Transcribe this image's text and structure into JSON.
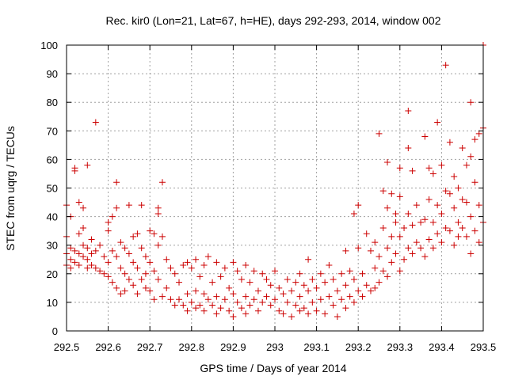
{
  "chart_data": {
    "type": "scatter",
    "title": "Rec. kir0 (Lon=21, Lat=67, h=HE), days 292-293, 2014, window 002",
    "xlabel": "GPS time / Days of year 2014",
    "ylabel": "STEC from uqrg / TECUs",
    "xlim": [
      292.5,
      293.5
    ],
    "ylim": [
      0,
      100
    ],
    "x_ticks": [
      292.5,
      292.6,
      292.7,
      292.8,
      292.9,
      293,
      293.1,
      293.2,
      293.3,
      293.4,
      293.5
    ],
    "x_tick_labels": [
      "292.5",
      "292.6",
      "292.7",
      "292.8",
      "292.9",
      "293",
      "293.1",
      "293.2",
      "293.3",
      "293.4",
      "293.5"
    ],
    "y_ticks": [
      0,
      10,
      20,
      30,
      40,
      50,
      60,
      70,
      80,
      90,
      100
    ],
    "y_tick_labels": [
      "0",
      "10",
      "20",
      "30",
      "40",
      "50",
      "60",
      "70",
      "80",
      "90",
      "100"
    ],
    "grid": true,
    "marker": "plus",
    "color": "#cc0000",
    "series": [
      {
        "points": [
          [
            292.5,
            44
          ],
          [
            292.5,
            33
          ],
          [
            292.5,
            27
          ],
          [
            292.5,
            23
          ],
          [
            292.51,
            40
          ],
          [
            292.51,
            29
          ],
          [
            292.51,
            25
          ],
          [
            292.51,
            22
          ],
          [
            292.52,
            57
          ],
          [
            292.52,
            56
          ],
          [
            292.52,
            28
          ],
          [
            292.52,
            24
          ],
          [
            292.53,
            45
          ],
          [
            292.53,
            34
          ],
          [
            292.53,
            27
          ],
          [
            292.53,
            23
          ],
          [
            292.54,
            43
          ],
          [
            292.54,
            36
          ],
          [
            292.54,
            30
          ],
          [
            292.54,
            26
          ],
          [
            292.55,
            58
          ],
          [
            292.55,
            29
          ],
          [
            292.55,
            25
          ],
          [
            292.55,
            22
          ],
          [
            292.56,
            32
          ],
          [
            292.56,
            27
          ],
          [
            292.56,
            23
          ],
          [
            292.57,
            73
          ],
          [
            292.57,
            28
          ],
          [
            292.57,
            22
          ],
          [
            292.58,
            30
          ],
          [
            292.58,
            21
          ],
          [
            292.59,
            26
          ],
          [
            292.59,
            20
          ],
          [
            292.6,
            38
          ],
          [
            292.6,
            35
          ],
          [
            292.6,
            24
          ],
          [
            292.6,
            19
          ],
          [
            292.61,
            40
          ],
          [
            292.61,
            28
          ],
          [
            292.61,
            17
          ],
          [
            292.62,
            52
          ],
          [
            292.62,
            43
          ],
          [
            292.62,
            26
          ],
          [
            292.62,
            15
          ],
          [
            292.63,
            31
          ],
          [
            292.63,
            22
          ],
          [
            292.63,
            13
          ],
          [
            292.64,
            29
          ],
          [
            292.64,
            20
          ],
          [
            292.64,
            14
          ],
          [
            292.65,
            44
          ],
          [
            292.65,
            27
          ],
          [
            292.65,
            18
          ],
          [
            292.66,
            33
          ],
          [
            292.66,
            24
          ],
          [
            292.66,
            16
          ],
          [
            292.67,
            34
          ],
          [
            292.67,
            22
          ],
          [
            292.67,
            13
          ],
          [
            292.68,
            44
          ],
          [
            292.68,
            29
          ],
          [
            292.68,
            18
          ],
          [
            292.69,
            26
          ],
          [
            292.69,
            20
          ],
          [
            292.69,
            15
          ],
          [
            292.7,
            35
          ],
          [
            292.7,
            24
          ],
          [
            292.7,
            14
          ],
          [
            292.71,
            34
          ],
          [
            292.71,
            21
          ],
          [
            292.71,
            11
          ],
          [
            292.72,
            43
          ],
          [
            292.72,
            41
          ],
          [
            292.72,
            30
          ],
          [
            292.72,
            18
          ],
          [
            292.73,
            52
          ],
          [
            292.73,
            33
          ],
          [
            292.73,
            12
          ],
          [
            292.74,
            25
          ],
          [
            292.74,
            15
          ],
          [
            292.75,
            22
          ],
          [
            292.75,
            11
          ],
          [
            292.76,
            20
          ],
          [
            292.76,
            9
          ],
          [
            292.77,
            17
          ],
          [
            292.77,
            11
          ],
          [
            292.78,
            23
          ],
          [
            292.78,
            9
          ],
          [
            292.79,
            24
          ],
          [
            292.79,
            13
          ],
          [
            292.79,
            7
          ],
          [
            292.8,
            22
          ],
          [
            292.8,
            10
          ],
          [
            292.81,
            25
          ],
          [
            292.81,
            14
          ],
          [
            292.81,
            8
          ],
          [
            292.82,
            19
          ],
          [
            292.82,
            9
          ],
          [
            292.83,
            23
          ],
          [
            292.83,
            13
          ],
          [
            292.83,
            7
          ],
          [
            292.84,
            26
          ],
          [
            292.84,
            11
          ],
          [
            292.85,
            17
          ],
          [
            292.85,
            9
          ],
          [
            292.86,
            24
          ],
          [
            292.86,
            12
          ],
          [
            292.86,
            6
          ],
          [
            292.87,
            19
          ],
          [
            292.87,
            8
          ],
          [
            292.88,
            22
          ],
          [
            292.88,
            11
          ],
          [
            292.89,
            15
          ],
          [
            292.89,
            7
          ],
          [
            292.9,
            24
          ],
          [
            292.9,
            13
          ],
          [
            292.9,
            5
          ],
          [
            292.91,
            21
          ],
          [
            292.91,
            10
          ],
          [
            292.92,
            18
          ],
          [
            292.92,
            8
          ],
          [
            292.93,
            23
          ],
          [
            292.93,
            12
          ],
          [
            292.93,
            6
          ],
          [
            292.94,
            17
          ],
          [
            292.94,
            9
          ],
          [
            292.95,
            21
          ],
          [
            292.95,
            11
          ],
          [
            292.96,
            14
          ],
          [
            292.96,
            7
          ],
          [
            292.97,
            20
          ],
          [
            292.97,
            10
          ],
          [
            292.98,
            18
          ],
          [
            292.98,
            12
          ],
          [
            292.99,
            16
          ],
          [
            292.99,
            9
          ],
          [
            293,
            21
          ],
          [
            293,
            11
          ],
          [
            293.01,
            15
          ],
          [
            293.01,
            7
          ],
          [
            293.02,
            13
          ],
          [
            293.02,
            6
          ],
          [
            293.03,
            18
          ],
          [
            293.03,
            10
          ],
          [
            293.04,
            14
          ],
          [
            293.04,
            5
          ],
          [
            293.05,
            17
          ],
          [
            293.05,
            9
          ],
          [
            293.06,
            20
          ],
          [
            293.06,
            12
          ],
          [
            293.06,
            7
          ],
          [
            293.07,
            16
          ],
          [
            293.07,
            8
          ],
          [
            293.08,
            25
          ],
          [
            293.08,
            14
          ],
          [
            293.08,
            6
          ],
          [
            293.09,
            18
          ],
          [
            293.09,
            10
          ],
          [
            293.1,
            15
          ],
          [
            293.1,
            7
          ],
          [
            293.11,
            20
          ],
          [
            293.11,
            11
          ],
          [
            293.12,
            17
          ],
          [
            293.12,
            6
          ],
          [
            293.13,
            23
          ],
          [
            293.13,
            12
          ],
          [
            293.14,
            18
          ],
          [
            293.14,
            9
          ],
          [
            293.15,
            14
          ],
          [
            293.15,
            5
          ],
          [
            293.16,
            20
          ],
          [
            293.16,
            11
          ],
          [
            293.17,
            28
          ],
          [
            293.17,
            16
          ],
          [
            293.17,
            8
          ],
          [
            293.18,
            21
          ],
          [
            293.18,
            12
          ],
          [
            293.19,
            41
          ],
          [
            293.19,
            18
          ],
          [
            293.19,
            10
          ],
          [
            293.2,
            44
          ],
          [
            293.2,
            29
          ],
          [
            293.2,
            14
          ],
          [
            293.21,
            20
          ],
          [
            293.21,
            12
          ],
          [
            293.22,
            34
          ],
          [
            293.22,
            16
          ],
          [
            293.23,
            28
          ],
          [
            293.23,
            14
          ],
          [
            293.24,
            31
          ],
          [
            293.24,
            22
          ],
          [
            293.24,
            15
          ],
          [
            293.25,
            69
          ],
          [
            293.25,
            26
          ],
          [
            293.25,
            17
          ],
          [
            293.26,
            49
          ],
          [
            293.26,
            36
          ],
          [
            293.26,
            21
          ],
          [
            293.27,
            59
          ],
          [
            293.27,
            43
          ],
          [
            293.27,
            29
          ],
          [
            293.27,
            19
          ],
          [
            293.28,
            48
          ],
          [
            293.28,
            33
          ],
          [
            293.28,
            24
          ],
          [
            293.29,
            41
          ],
          [
            293.29,
            38
          ],
          [
            293.29,
            27
          ],
          [
            293.3,
            57
          ],
          [
            293.3,
            47
          ],
          [
            293.3,
            33
          ],
          [
            293.3,
            21
          ],
          [
            293.31,
            36
          ],
          [
            293.31,
            25
          ],
          [
            293.32,
            77
          ],
          [
            293.32,
            64
          ],
          [
            293.32,
            41
          ],
          [
            293.32,
            29
          ],
          [
            293.33,
            56
          ],
          [
            293.33,
            37
          ],
          [
            293.33,
            27
          ],
          [
            293.34,
            44
          ],
          [
            293.34,
            31
          ],
          [
            293.35,
            38
          ],
          [
            293.35,
            29
          ],
          [
            293.36,
            68
          ],
          [
            293.36,
            39
          ],
          [
            293.36,
            26
          ],
          [
            293.37,
            57
          ],
          [
            293.37,
            46
          ],
          [
            293.37,
            32
          ],
          [
            293.38,
            55
          ],
          [
            293.38,
            38
          ],
          [
            293.38,
            29
          ],
          [
            293.39,
            73
          ],
          [
            293.39,
            44
          ],
          [
            293.39,
            34
          ],
          [
            293.4,
            58
          ],
          [
            293.4,
            41
          ],
          [
            293.4,
            31
          ],
          [
            293.41,
            93
          ],
          [
            293.41,
            49
          ],
          [
            293.41,
            36
          ],
          [
            293.42,
            66
          ],
          [
            293.42,
            48
          ],
          [
            293.42,
            35
          ],
          [
            293.43,
            54
          ],
          [
            293.43,
            43
          ],
          [
            293.43,
            30
          ],
          [
            293.44,
            50
          ],
          [
            293.44,
            38
          ],
          [
            293.44,
            33
          ],
          [
            293.45,
            64
          ],
          [
            293.45,
            46
          ],
          [
            293.45,
            36
          ],
          [
            293.46,
            58
          ],
          [
            293.46,
            45
          ],
          [
            293.46,
            33
          ],
          [
            293.47,
            80
          ],
          [
            293.47,
            61
          ],
          [
            293.47,
            40
          ],
          [
            293.47,
            27
          ],
          [
            293.48,
            67
          ],
          [
            293.48,
            52
          ],
          [
            293.48,
            35
          ],
          [
            293.49,
            69
          ],
          [
            293.49,
            44
          ],
          [
            293.49,
            31
          ],
          [
            293.5,
            100
          ],
          [
            293.5,
            71
          ],
          [
            293.5,
            38
          ]
        ]
      }
    ]
  }
}
